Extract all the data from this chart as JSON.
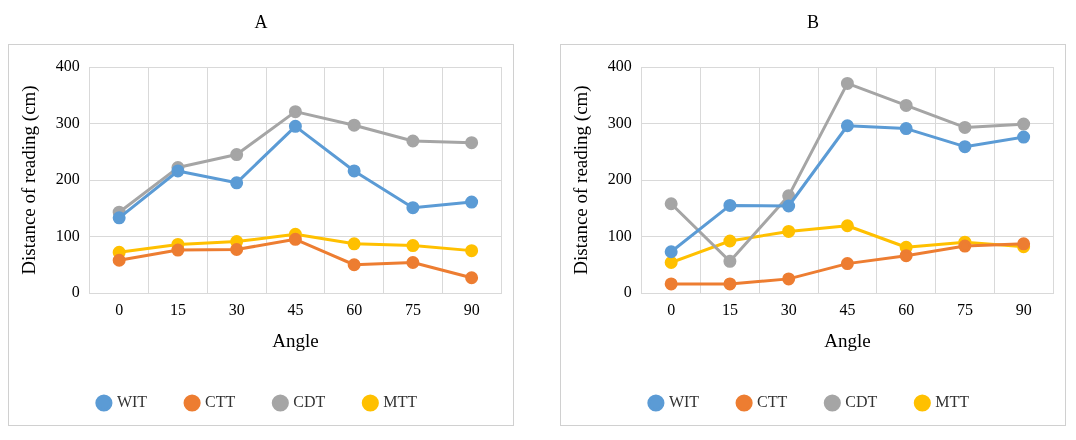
{
  "chart_data": [
    {
      "type": "line",
      "title": "A",
      "xlabel": "Angle",
      "ylabel": "Distance of reading (cm)",
      "categories": [
        "0",
        "15",
        "30",
        "45",
        "60",
        "75",
        "90"
      ],
      "ylim": [
        0,
        400
      ],
      "yticks": [
        0,
        100,
        200,
        300,
        400
      ],
      "grid": true,
      "legend": "bottom",
      "marker": "circle",
      "series": [
        {
          "name": "WIT",
          "color": "#5b9bd5",
          "values": [
            133,
            216,
            195,
            295,
            216,
            151,
            161
          ]
        },
        {
          "name": "CTT",
          "color": "#ed7d31",
          "values": [
            58,
            76,
            77,
            95,
            50,
            54,
            27
          ]
        },
        {
          "name": "CDT",
          "color": "#a5a5a5",
          "values": [
            143,
            222,
            245,
            321,
            297,
            269,
            266
          ]
        },
        {
          "name": "MTT",
          "color": "#ffc000",
          "values": [
            72,
            86,
            91,
            104,
            87,
            84,
            75
          ]
        }
      ]
    },
    {
      "type": "line",
      "title": "B",
      "xlabel": "Angle",
      "ylabel": "Distance of reading (cm)",
      "categories": [
        "0",
        "15",
        "30",
        "45",
        "60",
        "75",
        "90"
      ],
      "ylim": [
        0,
        400
      ],
      "yticks": [
        0,
        100,
        200,
        300,
        400
      ],
      "grid": true,
      "legend": "bottom",
      "marker": "circle",
      "series": [
        {
          "name": "WIT",
          "color": "#5b9bd5",
          "values": [
            73,
            155,
            154,
            296,
            291,
            259,
            276
          ]
        },
        {
          "name": "CTT",
          "color": "#ed7d31",
          "values": [
            16,
            16,
            25,
            52,
            66,
            83,
            87
          ]
        },
        {
          "name": "CDT",
          "color": "#a5a5a5",
          "values": [
            158,
            56,
            172,
            371,
            332,
            293,
            299
          ]
        },
        {
          "name": "MTT",
          "color": "#ffc000",
          "values": [
            54,
            92,
            109,
            119,
            81,
            90,
            82
          ]
        }
      ]
    }
  ]
}
